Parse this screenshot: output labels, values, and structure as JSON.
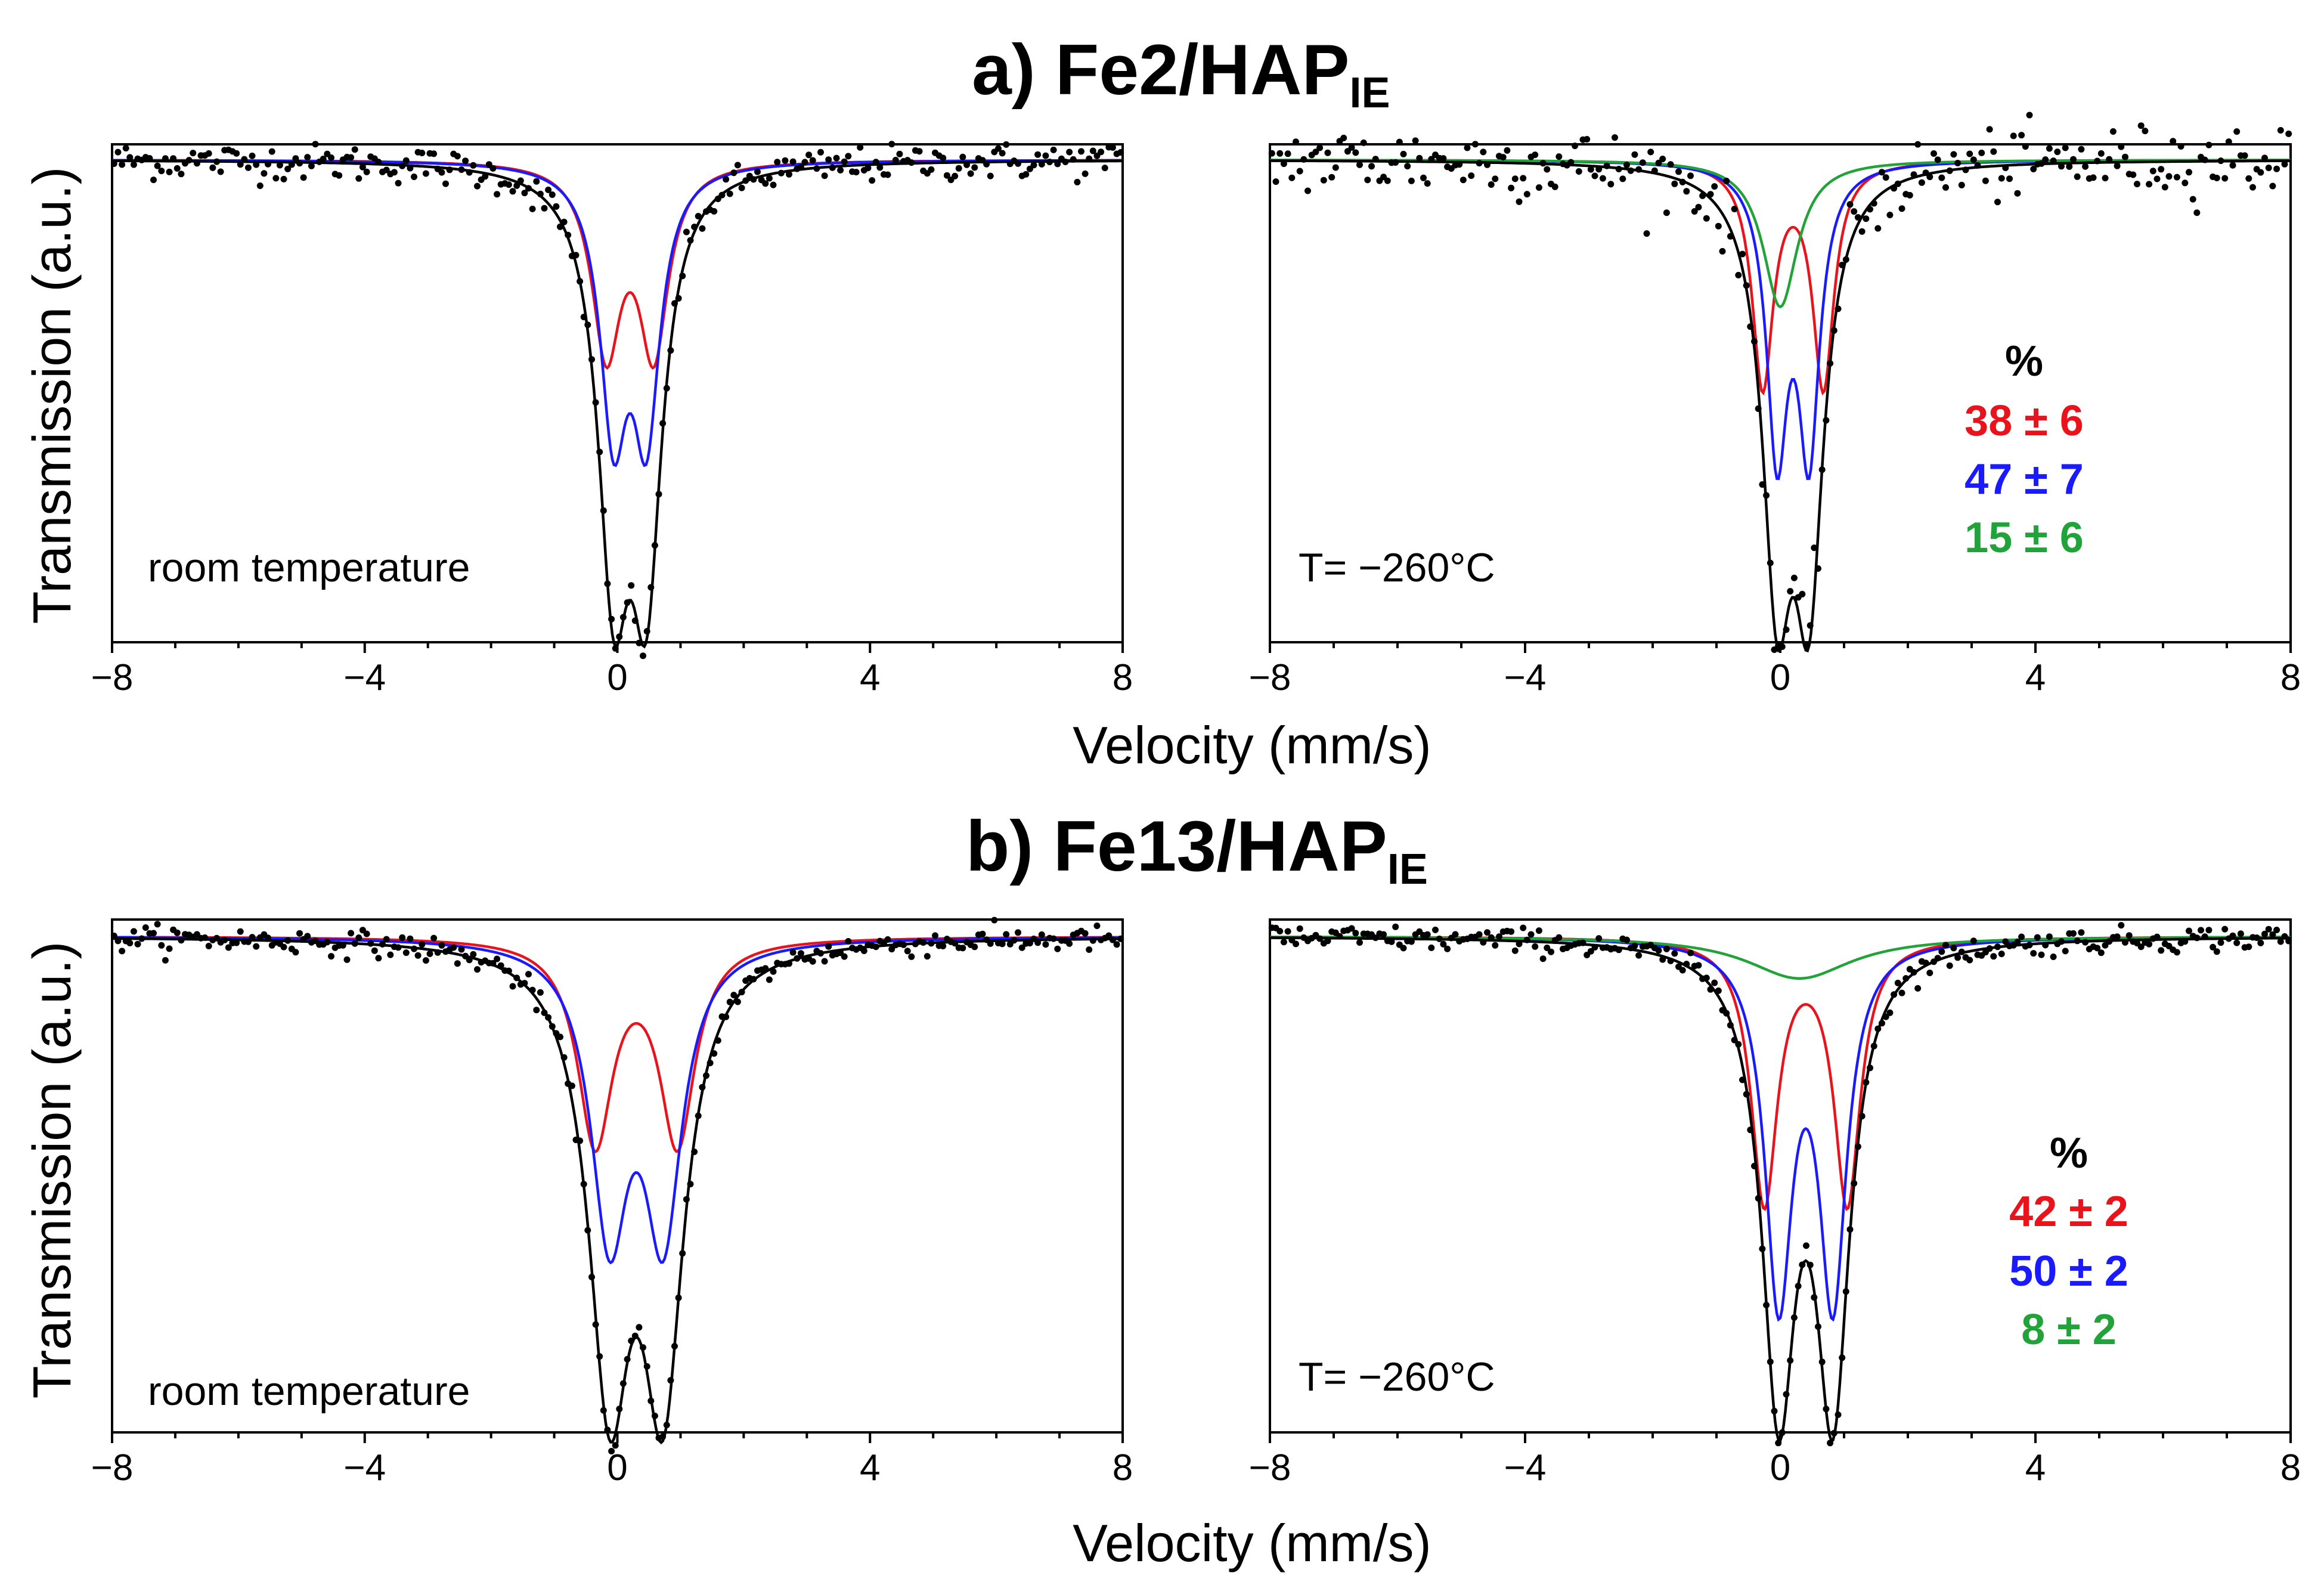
{
  "figure": {
    "x_axis_label": "Velocity (mm/s)",
    "y_axis_label": "Transmission (a.u.)",
    "percent_header": "%"
  },
  "colors": {
    "fit_total": "#000000",
    "component_red": "#e8131b",
    "component_blue": "#1a1aff",
    "component_green": "#22a33a",
    "points": "#000000"
  },
  "sections": [
    {
      "id": "a",
      "title_main": "a) Fe2/HAP",
      "title_sub": "IE"
    },
    {
      "id": "b",
      "title_main": "b) Fe13/HAP",
      "title_sub": "IE"
    }
  ],
  "chart_data": [
    {
      "type": "scatter",
      "title": "a) Fe2/HAP_IE — room temperature",
      "annotation": "room temperature",
      "xlabel": "Velocity (mm/s)",
      "ylabel": "Transmission (a.u.)",
      "xlim": [
        -8,
        8
      ],
      "ylim": [
        0,
        1
      ],
      "xticks": [
        -8,
        -4,
        0,
        4,
        8
      ],
      "xtick_labels": [
        "−8",
        "−4",
        "0",
        "4",
        "8"
      ],
      "baseline": 0.92,
      "noise": 0.018,
      "series": [
        {
          "name": "component 1",
          "color": "red",
          "doublet": {
            "center": 0.2,
            "split": 0.75,
            "width": 0.28,
            "depth": 0.41
          }
        },
        {
          "name": "component 2",
          "color": "blue",
          "doublet": {
            "center": 0.2,
            "split": 0.52,
            "width": 0.26,
            "depth": 0.6
          }
        },
        {
          "name": "total fit",
          "color": "black",
          "doublet": {
            "center": 0.2,
            "split": 0.52,
            "width": 0.3,
            "depth": 0.95
          }
        }
      ],
      "percentages": []
    },
    {
      "type": "scatter",
      "title": "a) Fe2/HAP_IE — T= −260°C",
      "annotation": "T= −260°C",
      "xlabel": "Velocity (mm/s)",
      "ylabel": "Transmission (a.u.)",
      "xlim": [
        -8,
        8
      ],
      "ylim": [
        0,
        1
      ],
      "xticks": [
        -8,
        -4,
        0,
        4,
        8
      ],
      "xtick_labels": [
        "−8",
        "−4",
        "0",
        "4",
        "8"
      ],
      "baseline": 0.92,
      "noise": 0.035,
      "series": [
        {
          "name": "component 1",
          "color": "red",
          "doublet": {
            "center": 0.2,
            "split": 0.95,
            "width": 0.2,
            "depth": 0.46
          }
        },
        {
          "name": "component 2",
          "color": "blue",
          "doublet": {
            "center": 0.2,
            "split": 0.5,
            "width": 0.2,
            "depth": 0.63
          }
        },
        {
          "name": "component 3",
          "color": "green",
          "singlet": {
            "center": 0.0,
            "width": 0.33,
            "depth": 0.29
          }
        },
        {
          "name": "total fit",
          "color": "black",
          "doublet": {
            "center": 0.2,
            "split": 0.5,
            "width": 0.28,
            "depth": 0.96
          }
        }
      ],
      "percentages": [
        {
          "label": "38 ± 6",
          "color": "red"
        },
        {
          "label": "47 ± 7",
          "color": "blue"
        },
        {
          "label": "15 ± 6",
          "color": "green"
        }
      ]
    },
    {
      "type": "scatter",
      "title": "b) Fe13/HAP_IE — room temperature",
      "annotation": "room temperature",
      "xlabel": "Velocity (mm/s)",
      "ylabel": "Transmission (a.u.)",
      "xlim": [
        -8,
        8
      ],
      "ylim": [
        0,
        1
      ],
      "xticks": [
        -8,
        -4,
        0,
        4,
        8
      ],
      "xtick_labels": [
        "−8",
        "−4",
        "0",
        "4",
        "8"
      ],
      "baseline": 0.92,
      "noise": 0.012,
      "series": [
        {
          "name": "component 1",
          "color": "red",
          "doublet": {
            "center": 0.3,
            "split": 1.3,
            "width": 0.34,
            "depth": 0.41
          }
        },
        {
          "name": "component 2",
          "color": "blue",
          "doublet": {
            "center": 0.3,
            "split": 0.85,
            "width": 0.36,
            "depth": 0.62
          }
        },
        {
          "name": "total fit",
          "color": "black",
          "doublet": {
            "center": 0.3,
            "split": 0.85,
            "width": 0.4,
            "depth": 0.96
          }
        }
      ],
      "percentages": []
    },
    {
      "type": "scatter",
      "title": "b) Fe13/HAP_IE — T= −260°C",
      "annotation": "T= −260°C",
      "xlabel": "Velocity (mm/s)",
      "ylabel": "Transmission (a.u.)",
      "xlim": [
        -8,
        8
      ],
      "ylim": [
        0,
        1
      ],
      "xticks": [
        -8,
        -4,
        0,
        4,
        8
      ],
      "xtick_labels": [
        "−8",
        "−4",
        "0",
        "4",
        "8"
      ],
      "baseline": 0.92,
      "noise": 0.012,
      "series": [
        {
          "name": "component 1",
          "color": "red",
          "doublet": {
            "center": 0.4,
            "split": 1.3,
            "width": 0.25,
            "depth": 0.52
          }
        },
        {
          "name": "component 2",
          "color": "blue",
          "doublet": {
            "center": 0.4,
            "split": 0.85,
            "width": 0.26,
            "depth": 0.73
          }
        },
        {
          "name": "component 3",
          "color": "green",
          "singlet": {
            "center": 0.3,
            "width": 1.0,
            "depth": 0.08
          }
        },
        {
          "name": "total fit",
          "color": "black",
          "doublet": {
            "center": 0.4,
            "split": 0.85,
            "width": 0.32,
            "depth": 0.96
          }
        }
      ],
      "percentages": [
        {
          "label": "42 ± 2",
          "color": "red"
        },
        {
          "label": "50 ± 2",
          "color": "blue"
        },
        {
          "label": "8 ± 2",
          "color": "green"
        }
      ]
    }
  ]
}
